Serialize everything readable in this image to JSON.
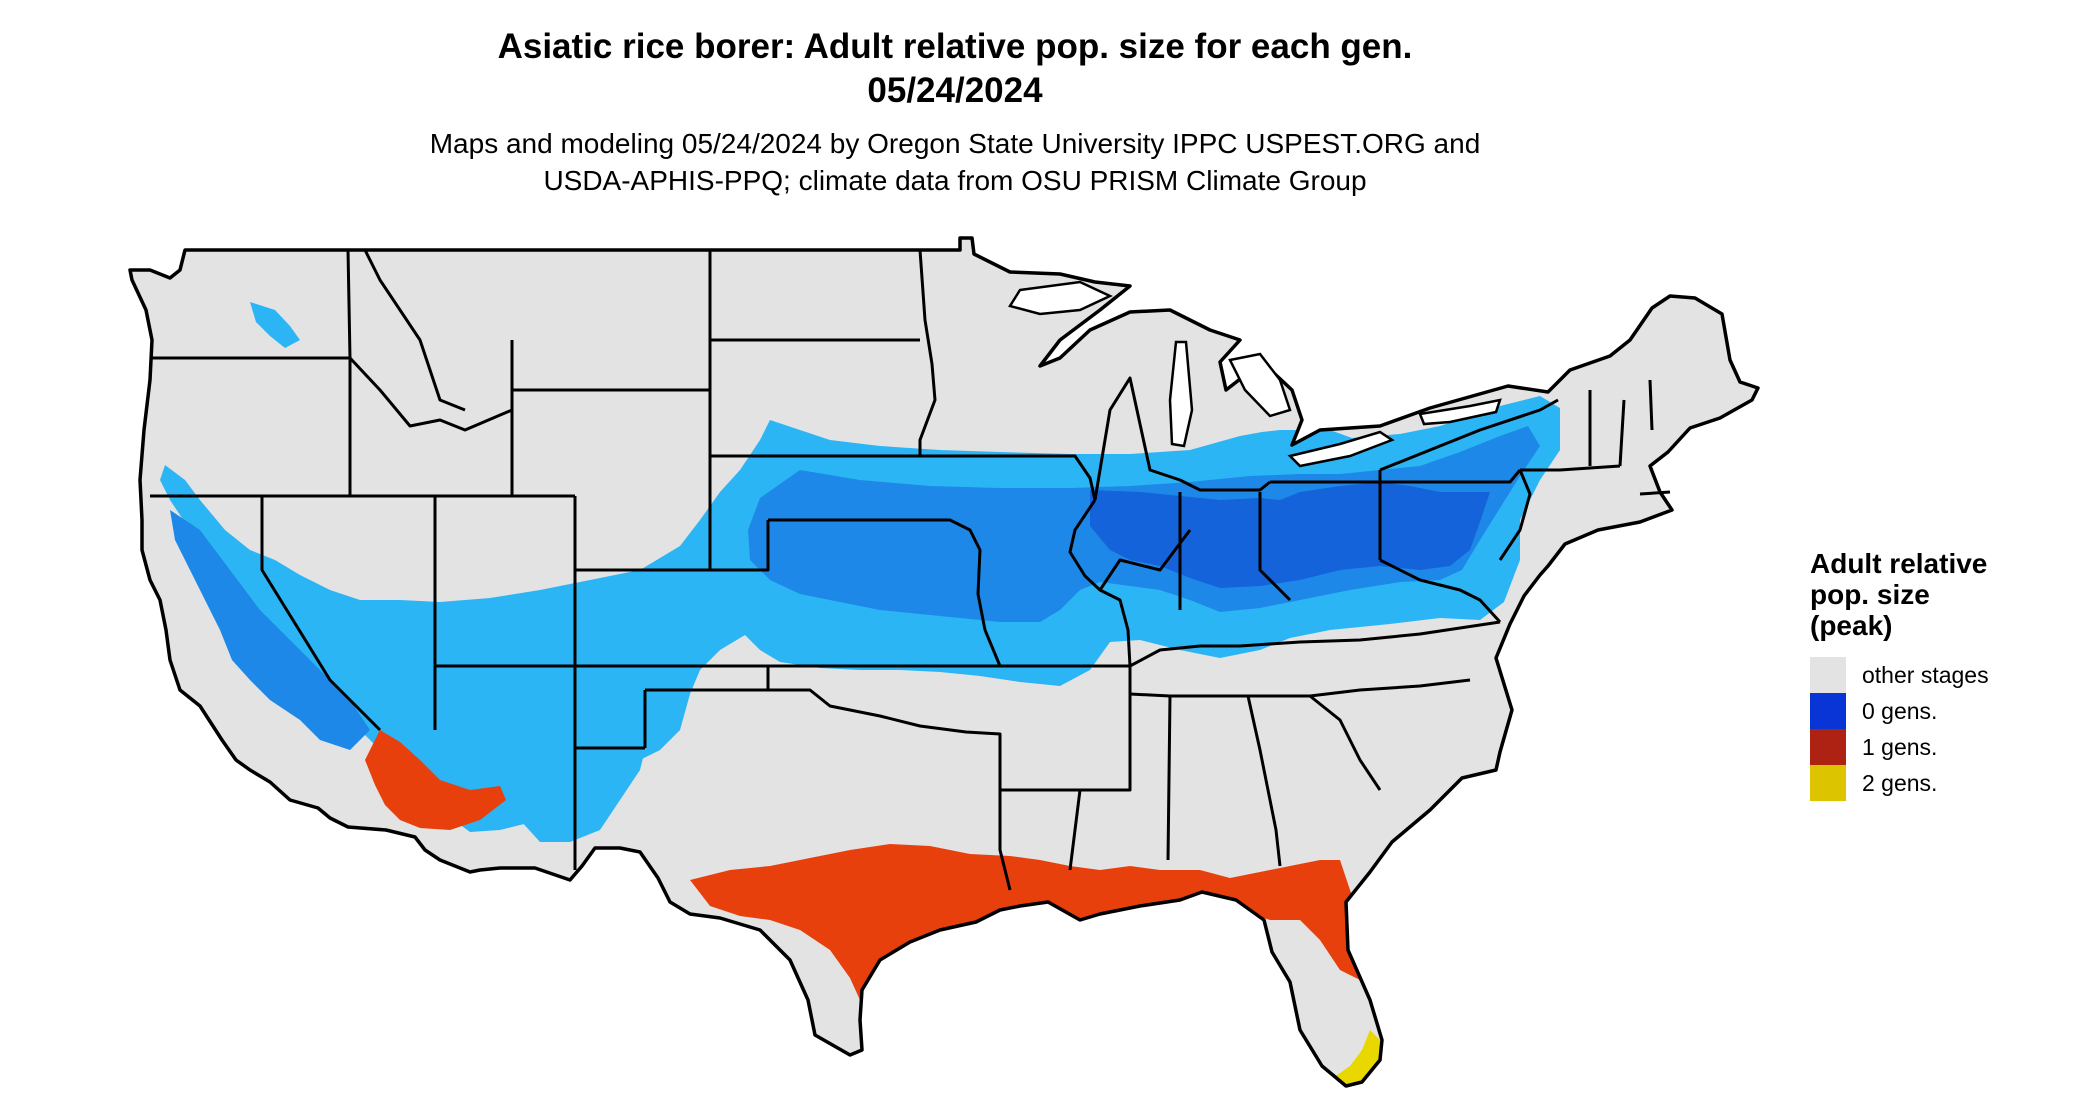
{
  "title": {
    "line1": "Asiatic rice borer: Adult relative pop. size for each gen.",
    "line2": "05/24/2024"
  },
  "subtitle": {
    "line1": "Maps and modeling 05/24/2024 by Oregon State University IPPC USPEST.ORG and",
    "line2": "USDA-APHIS-PPQ; climate data from OSU PRISM Climate Group"
  },
  "legend": {
    "title_lines": [
      "Adult relative",
      "pop. size",
      "(peak)"
    ],
    "items": [
      {
        "label": "other stages",
        "color": "#e3e3e3"
      },
      {
        "label": "0 gens.",
        "color": "#0a35d6"
      },
      {
        "label": "1 gens.",
        "color": "#ad2213"
      },
      {
        "label": "2 gens.",
        "color": "#dcc400"
      }
    ]
  },
  "map": {
    "region": "contiguous-us",
    "colors": {
      "background_land": "#e3e3e3",
      "borders": "#000000",
      "blue_light": "#29b6f6",
      "blue_mid": "#1e88e5",
      "blue_dark": "#1565d8",
      "red_orange": "#e8400c",
      "yellow": "#e8d800"
    }
  }
}
